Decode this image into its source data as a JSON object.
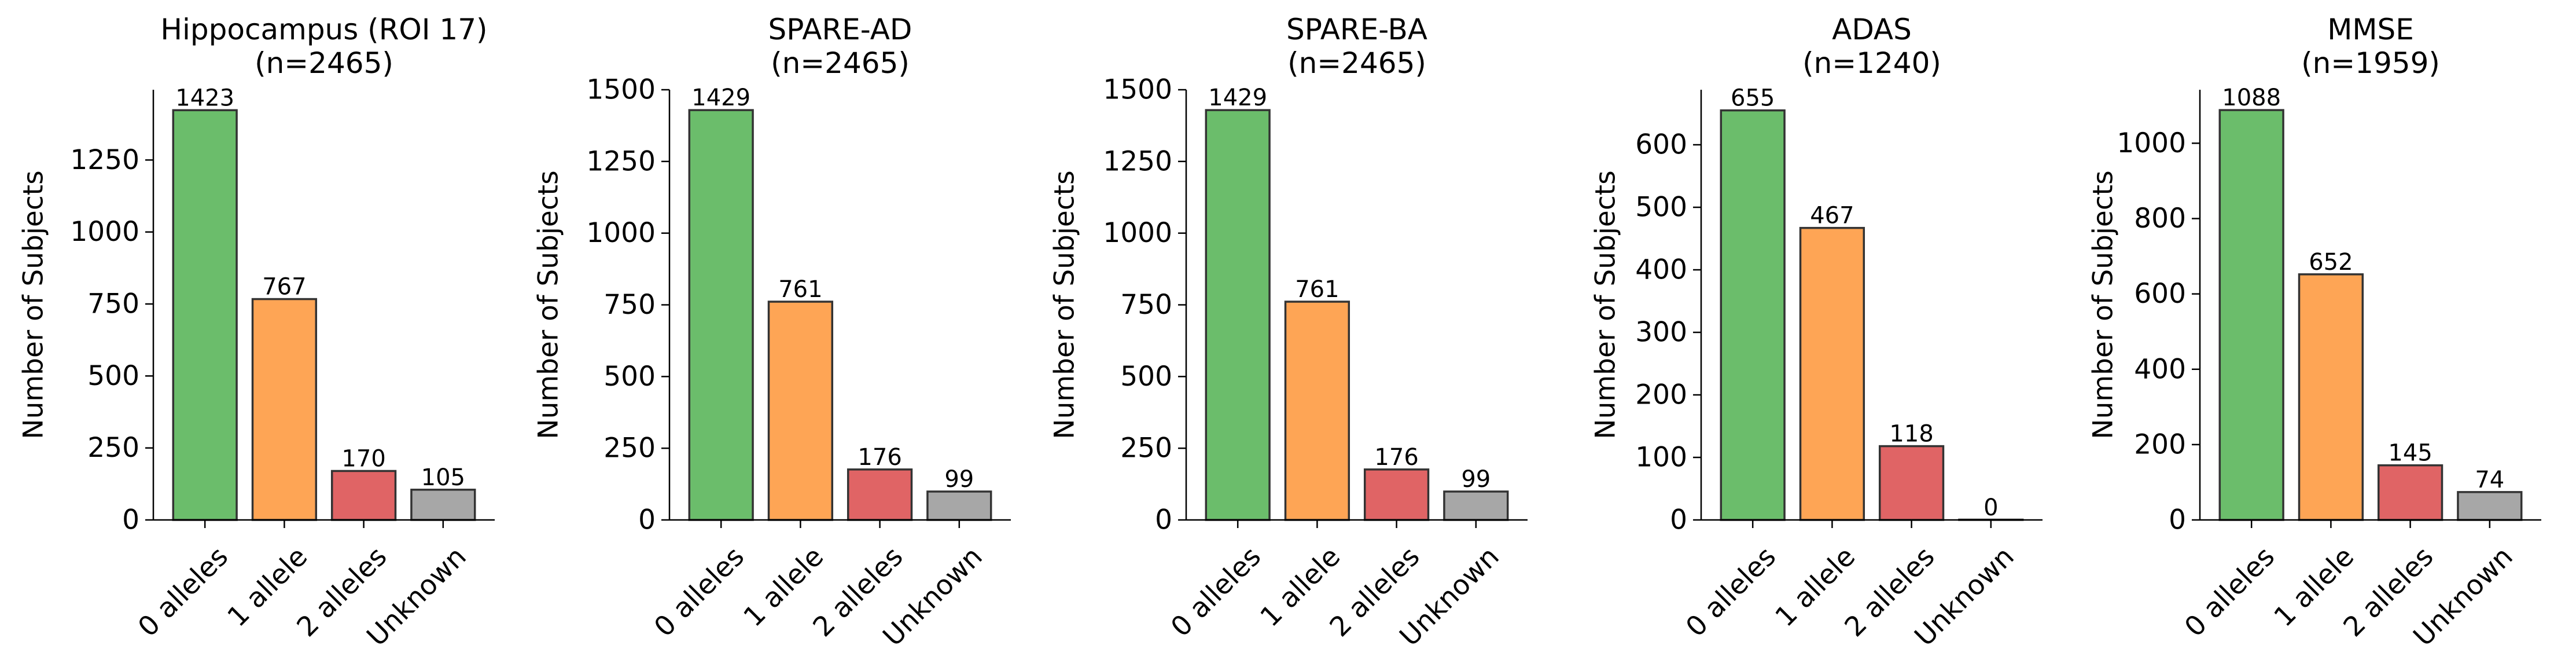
{
  "colors": [
    "#6bbd6b",
    "#fea555",
    "#e06465",
    "#a7a7a7"
  ],
  "chart_data": [
    {
      "type": "bar",
      "title": "Hippocampus (ROI 17)\n(n=2465)",
      "ylabel": "Number of Subjects",
      "categories": [
        "0 alleles",
        "1 allele",
        "2 alleles",
        "Unknown"
      ],
      "values": [
        1423,
        767,
        170,
        105
      ],
      "ylim": [
        0,
        1494
      ],
      "yticks": [
        0,
        250,
        500,
        750,
        1000,
        1250
      ]
    },
    {
      "type": "bar",
      "title": "SPARE-AD\n(n=2465)",
      "ylabel": "Number of Subjects",
      "categories": [
        "0 alleles",
        "1 allele",
        "2 alleles",
        "Unknown"
      ],
      "values": [
        1429,
        761,
        176,
        99
      ],
      "ylim": [
        0,
        1500
      ],
      "yticks": [
        0,
        250,
        500,
        750,
        1000,
        1250,
        1500
      ]
    },
    {
      "type": "bar",
      "title": "SPARE-BA\n(n=2465)",
      "ylabel": "Number of Subjects",
      "categories": [
        "0 alleles",
        "1 allele",
        "2 alleles",
        "Unknown"
      ],
      "values": [
        1429,
        761,
        176,
        99
      ],
      "ylim": [
        0,
        1500
      ],
      "yticks": [
        0,
        250,
        500,
        750,
        1000,
        1250,
        1500
      ]
    },
    {
      "type": "bar",
      "title": "ADAS\n(n=1240)",
      "ylabel": "Number of Subjects",
      "categories": [
        "0 alleles",
        "1 allele",
        "2 alleles",
        "Unknown"
      ],
      "values": [
        655,
        467,
        118,
        0
      ],
      "ylim": [
        0,
        688
      ],
      "yticks": [
        0,
        100,
        200,
        300,
        400,
        500,
        600
      ]
    },
    {
      "type": "bar",
      "title": "MMSE\n(n=1959)",
      "ylabel": "Number of Subjects",
      "categories": [
        "0 alleles",
        "1 allele",
        "2 alleles",
        "Unknown"
      ],
      "values": [
        1088,
        652,
        145,
        74
      ],
      "ylim": [
        0,
        1142
      ],
      "yticks": [
        0,
        200,
        400,
        600,
        800,
        1000
      ]
    }
  ]
}
